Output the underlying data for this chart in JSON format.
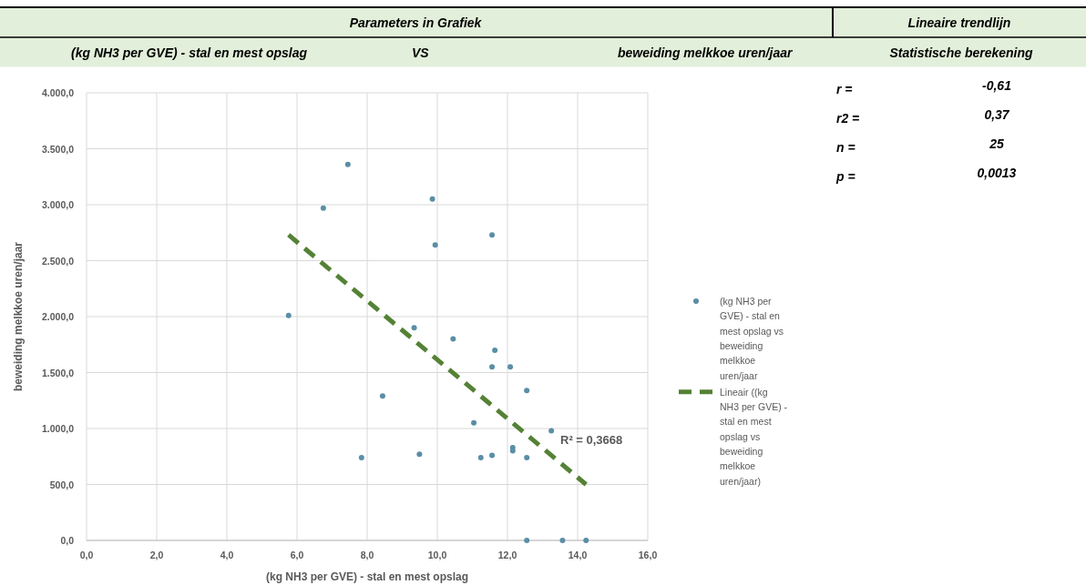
{
  "chart_data": {
    "type": "scatter",
    "title": "Parameters in Grafiek",
    "xlabel": "(kg NH3 per GVE) - stal en mest opslag",
    "ylabel": "beweiding melkkoe uren/jaar",
    "xlim": [
      0,
      16
    ],
    "ylim": [
      0,
      4000
    ],
    "xticks": [
      {
        "value": 0,
        "label": "0,0"
      },
      {
        "value": 2,
        "label": "2,0"
      },
      {
        "value": 4,
        "label": "4,0"
      },
      {
        "value": 6,
        "label": "6,0"
      },
      {
        "value": 8,
        "label": "8,0"
      },
      {
        "value": 10,
        "label": "10,0"
      },
      {
        "value": 12,
        "label": "12,0"
      },
      {
        "value": 14,
        "label": "14,0"
      },
      {
        "value": 16,
        "label": "16,0"
      }
    ],
    "yticks": [
      {
        "value": 0,
        "label": "0,0"
      },
      {
        "value": 500,
        "label": "500,0"
      },
      {
        "value": 1000,
        "label": "1.000,0"
      },
      {
        "value": 1500,
        "label": "1.500,0"
      },
      {
        "value": 2000,
        "label": "2.000,0"
      },
      {
        "value": 2500,
        "label": "2.500,0"
      },
      {
        "value": 3000,
        "label": "3.000,0"
      },
      {
        "value": 3500,
        "label": "3.500,0"
      },
      {
        "value": 4000,
        "label": "4.000,0"
      }
    ],
    "grid": true,
    "legend": "right",
    "series": [
      {
        "name": "(kg NH3 per GVE) - stal en mest opslag vs beweiding melkkoe uren/jaar",
        "color": "#5a8ea6",
        "marker": "circle",
        "x": [
          7.45,
          6.75,
          9.86,
          11.56,
          9.94,
          5.76,
          9.34,
          10.45,
          11.64,
          11.56,
          12.08,
          12.55,
          8.44,
          11.04,
          13.25,
          12.15,
          12.15,
          9.49,
          11.56,
          11.24,
          7.84,
          12.55,
          12.55,
          13.57,
          14.24
        ],
        "values": [
          3360,
          2970,
          3050,
          2730,
          2640,
          2010,
          1900,
          1800,
          1700,
          1550,
          1550,
          1340,
          1290,
          1050,
          980,
          830,
          800,
          770,
          760,
          740,
          740,
          740,
          0,
          0,
          0
        ]
      },
      {
        "name": "Lineair ((kg NH3 per GVE) - stal en mest opslag vs beweiding melkkoe uren/jaar)",
        "color": "#548235",
        "type": "line",
        "line_style": "dashed",
        "marker": "none",
        "x": [
          5.76,
          14.24
        ],
        "values": [
          2730,
          500
        ]
      }
    ],
    "annotations": [
      "(kg NH3 per GVE) - stal en mest opslag",
      "VS",
      "beweiding melkkoe uren/jaar",
      "Lineaire trendlijn",
      "Statistische berekening",
      "r =",
      "-0,61",
      "r2 =",
      "0,37",
      "n =",
      "25",
      "p =",
      "0,0013",
      "R² = 0,3668"
    ]
  }
}
